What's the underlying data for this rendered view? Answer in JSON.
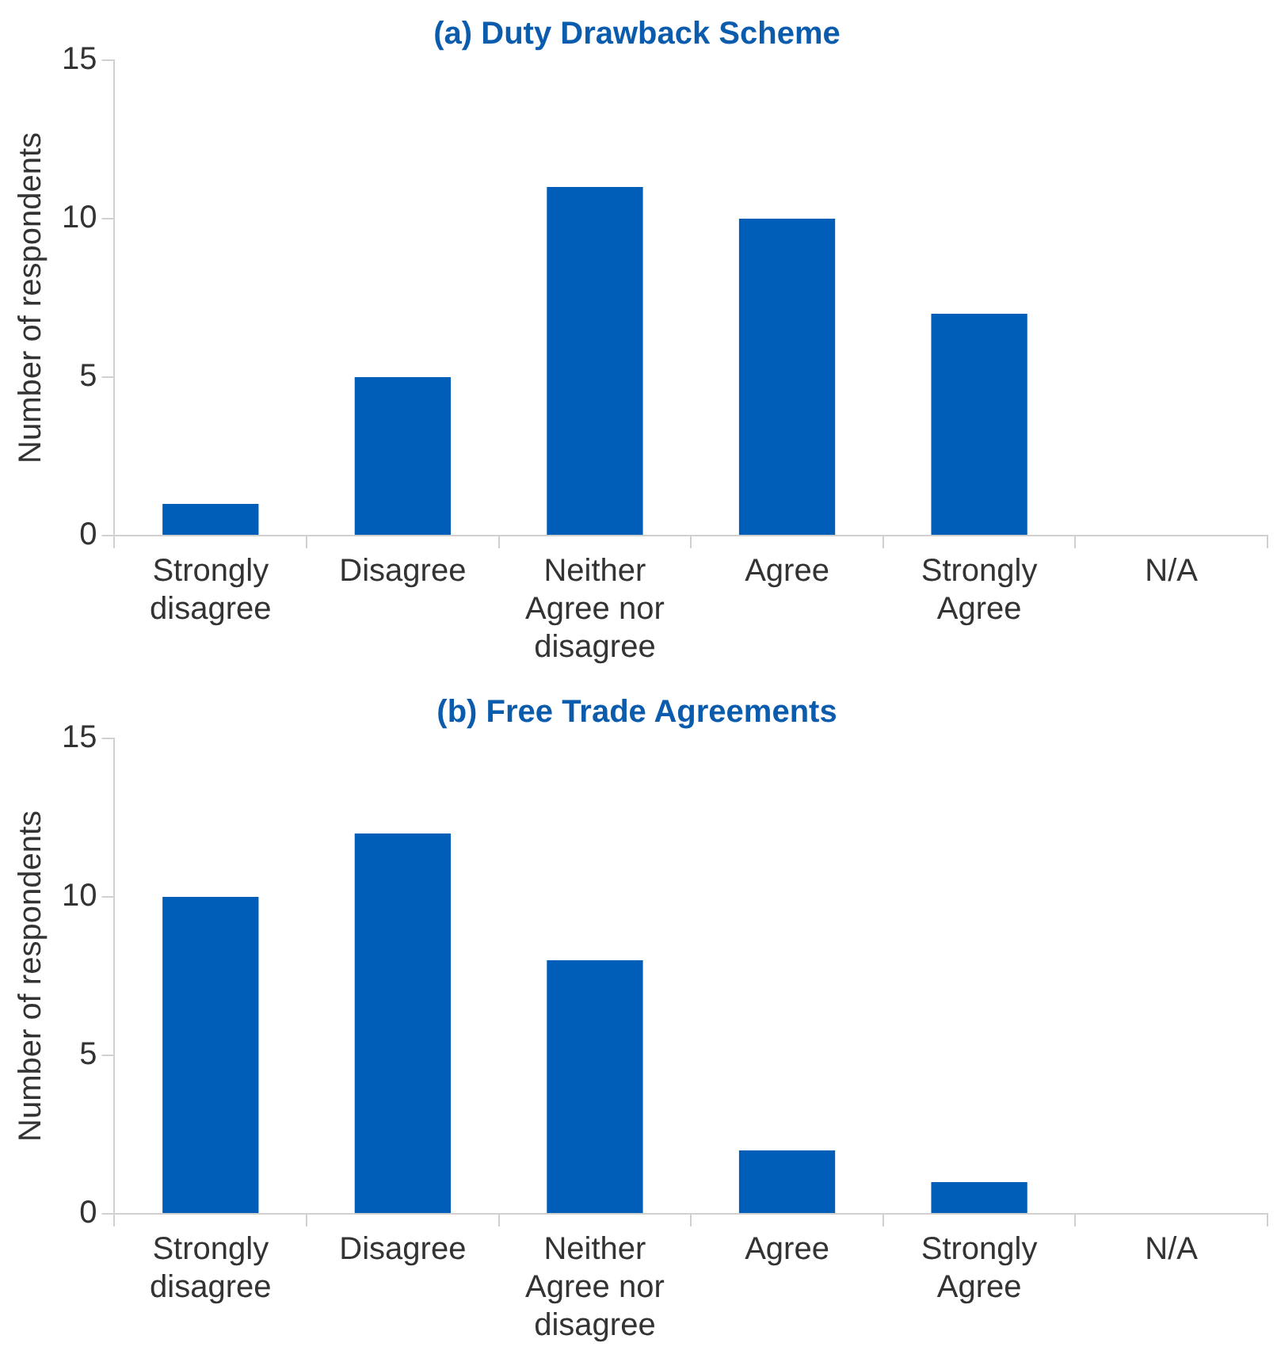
{
  "chart_data": [
    {
      "type": "bar",
      "title": "(a) Duty Drawback Scheme",
      "ylabel": "Number of respondents",
      "categories": [
        "Strongly disagree",
        "Disagree",
        "Neither Agree nor disagree",
        "Agree",
        "Strongly Agree",
        "N/A"
      ],
      "values": [
        1,
        5,
        11,
        10,
        7,
        0
      ],
      "color": "#005eb8",
      "ylim": [
        0,
        15
      ],
      "yticks": [
        0,
        5,
        10,
        15
      ],
      "grid": false,
      "legend": false
    },
    {
      "type": "bar",
      "title": "(b) Free Trade Agreements",
      "ylabel": "Number of respondents",
      "categories": [
        "Strongly disagree",
        "Disagree",
        "Neither Agree nor disagree",
        "Agree",
        "Strongly Agree",
        "N/A"
      ],
      "values": [
        10,
        12,
        8,
        2,
        1,
        0
      ],
      "color": "#005eb8",
      "ylim": [
        0,
        15
      ],
      "yticks": [
        0,
        5,
        10,
        15
      ],
      "grid": false,
      "legend": false
    }
  ]
}
